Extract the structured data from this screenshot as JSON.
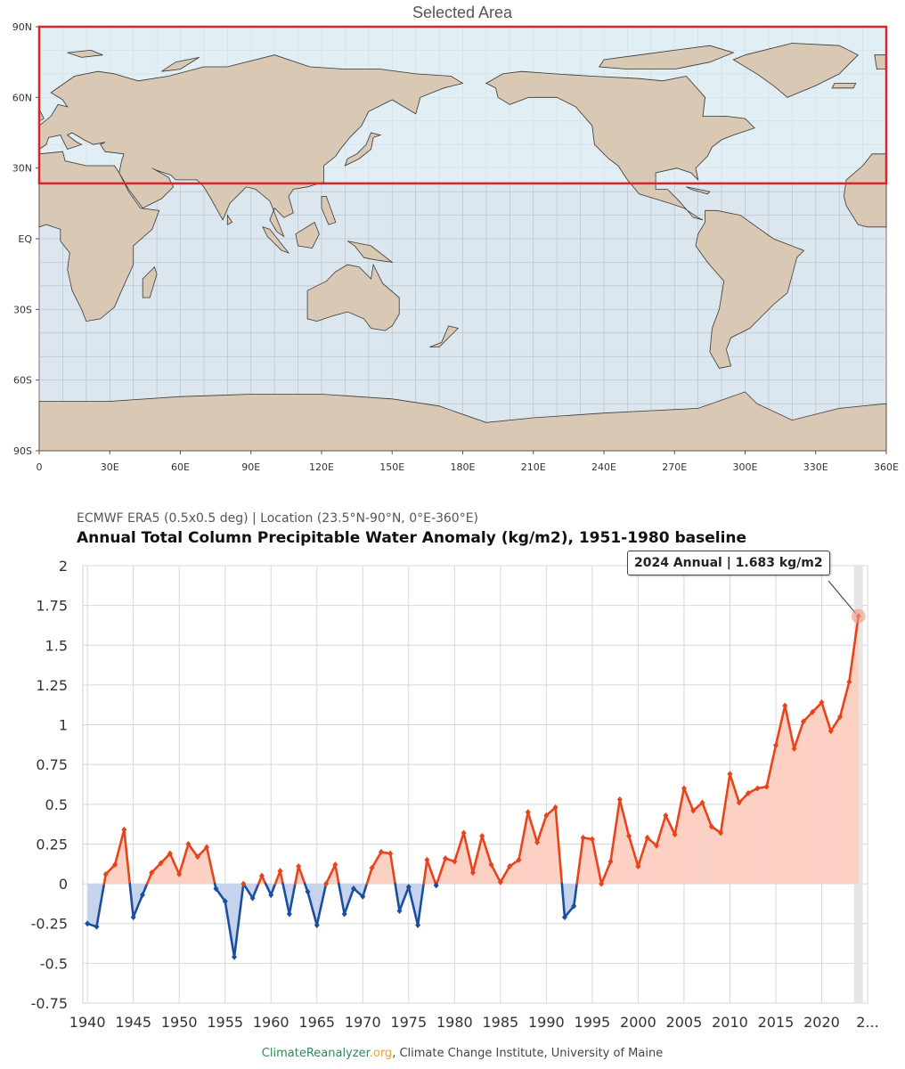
{
  "map": {
    "title": "Selected Area",
    "lat_labels": [
      "90N",
      "60N",
      "30N",
      "EQ",
      "30S",
      "60S",
      "90S"
    ],
    "lon_labels": [
      "0",
      "30E",
      "60E",
      "90E",
      "120E",
      "150E",
      "180E",
      "210E",
      "240E",
      "270E",
      "300E",
      "330E",
      "360E"
    ],
    "selection": {
      "lat_min": 23.5,
      "lat_max": 90,
      "lon_min": 0,
      "lon_max": 360
    },
    "colors": {
      "ocean": "#dce6ee",
      "land": "#d9c8b4",
      "selection_fill": "#e6f6fc",
      "selection_border": "#d6282a"
    }
  },
  "chart": {
    "subtitle": "ECMWF ERA5 (0.5x0.5 deg) | Location (23.5°N-90°N, 0°E-360°E)",
    "title": "Annual Total Column Precipitable Water Anomaly (kg/m2), 1951-1980 baseline",
    "tooltip": "2024 Annual | 1.683 kg/m2",
    "credit_part1": "ClimateReanalyzer",
    "credit_part2": ".org",
    "credit_part3": ", Climate Change Institute, University of Maine"
  },
  "chart_data": {
    "type": "area",
    "title": "Annual Total Column Precipitable Water Anomaly (kg/m2), 1951-1980 baseline",
    "xlabel": "",
    "ylabel": "",
    "ylim": [
      -0.75,
      2
    ],
    "yticks": [
      2,
      1.75,
      1.5,
      1.25,
      1,
      0.75,
      0.5,
      0.25,
      0,
      -0.25,
      -0.5,
      -0.75
    ],
    "ytick_labels": [
      "2",
      "1.75",
      "1.5",
      "1.25",
      "1",
      "0.75",
      "0.5",
      "0.25",
      "0",
      "-0.25",
      "-0.5",
      "-0.75"
    ],
    "xlim": [
      1939.5,
      2025
    ],
    "xtick_labels": [
      "1940",
      "1945",
      "1950",
      "1955",
      "1960",
      "1965",
      "1970",
      "1975",
      "1980",
      "1985",
      "1990",
      "1995",
      "2000",
      "2005",
      "2010",
      "2015",
      "2020",
      "2..."
    ],
    "colors": {
      "positive": "#e8431a",
      "negative": "#1a4fa0",
      "positive_fill": "#fcd0c3",
      "negative_fill": "#c5d3ec"
    },
    "series": [
      {
        "x": [
          1940,
          1941,
          1942,
          1943,
          1944,
          1945,
          1946,
          1947,
          1948,
          1949,
          1950,
          1951,
          1952,
          1953,
          1954,
          1955,
          1956,
          1957,
          1958,
          1959,
          1960,
          1961,
          1962,
          1963,
          1964,
          1965,
          1966,
          1967,
          1968,
          1969,
          1970,
          1971,
          1972,
          1973,
          1974,
          1975,
          1976,
          1977,
          1978,
          1979,
          1980,
          1981,
          1982,
          1983,
          1984,
          1985,
          1986,
          1987,
          1988,
          1989,
          1990,
          1991,
          1992,
          1993,
          1994,
          1995,
          1996,
          1997,
          1998,
          1999,
          2000,
          2001,
          2002,
          2003,
          2004,
          2005,
          2006,
          2007,
          2008,
          2009,
          2010,
          2011,
          2012,
          2013,
          2014,
          2015,
          2016,
          2017,
          2018,
          2019,
          2020,
          2021,
          2022,
          2023,
          2024
        ],
        "values": [
          -0.25,
          -0.27,
          0.06,
          0.12,
          0.34,
          -0.21,
          -0.07,
          0.07,
          0.13,
          0.19,
          0.06,
          0.25,
          0.17,
          0.23,
          -0.03,
          -0.11,
          -0.46,
          0.0,
          -0.09,
          0.05,
          -0.07,
          0.08,
          -0.19,
          0.11,
          -0.05,
          -0.26,
          0.0,
          0.12,
          -0.19,
          -0.03,
          -0.08,
          0.1,
          0.2,
          0.19,
          -0.17,
          -0.02,
          -0.26,
          0.15,
          -0.01,
          0.16,
          0.14,
          0.32,
          0.07,
          0.3,
          0.12,
          0.01,
          0.11,
          0.15,
          0.45,
          0.26,
          0.43,
          0.48,
          -0.21,
          -0.14,
          0.29,
          0.28,
          0.0,
          0.14,
          0.53,
          0.3,
          0.11,
          0.29,
          0.24,
          0.43,
          0.31,
          0.6,
          0.46,
          0.51,
          0.36,
          0.32,
          0.69,
          0.51,
          0.57,
          0.6,
          0.61,
          0.87,
          1.12,
          0.85,
          1.02,
          1.08,
          1.14,
          0.96,
          1.05,
          1.27,
          1.683
        ]
      }
    ]
  }
}
